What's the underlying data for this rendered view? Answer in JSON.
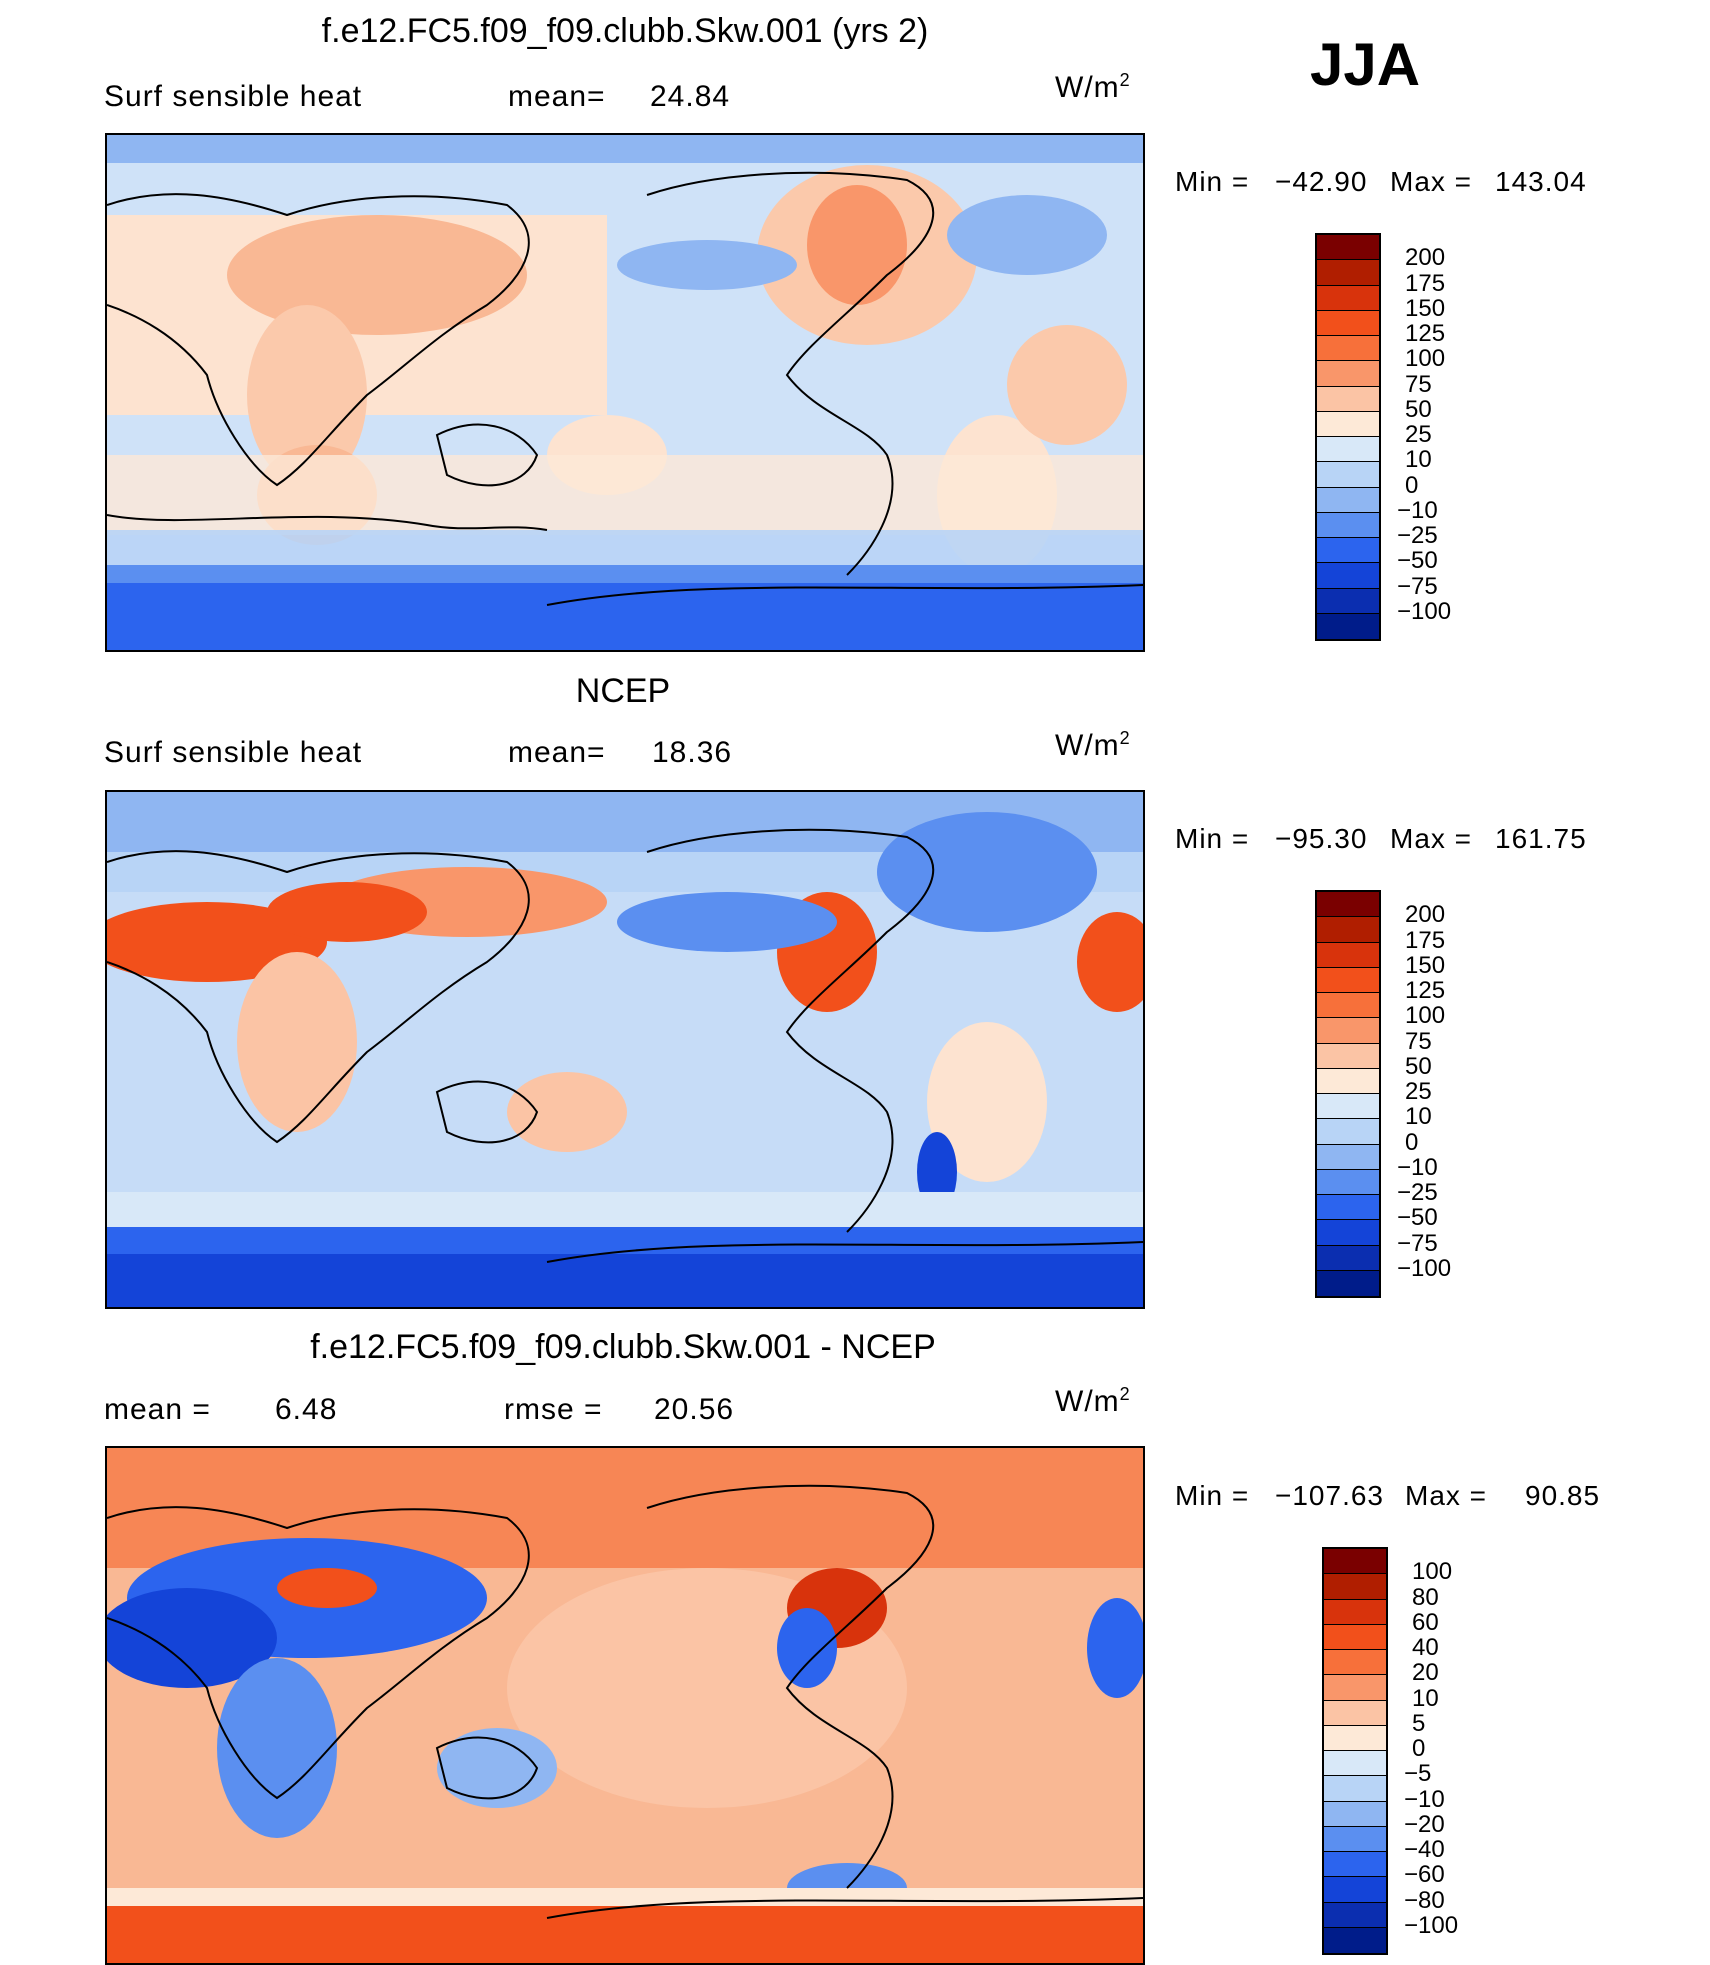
{
  "season": "JJA",
  "units_main": "W/m",
  "units_exp": "2",
  "panels": [
    {
      "title": "f.e12.FC5.f09_f09.clubb.Skw.001 (yrs 2)",
      "left_label": "Surf  sensible  heat",
      "stat_label": "mean=",
      "stat_value": "24.84",
      "min_label": "Min  =",
      "min_value": "−42.90",
      "max_label": "Max  =",
      "max_value": "143.04",
      "colorbar": {
        "levels": [
          "200",
          "175",
          "150",
          "125",
          "100",
          "75",
          "50",
          "25",
          "10",
          "0",
          "−10",
          "−25",
          "−50",
          "−75",
          "−100"
        ],
        "colors": [
          "#7a0000",
          "#b01e00",
          "#d8330c",
          "#f2501b",
          "#f7703a",
          "#f9966a",
          "#fbc4a5",
          "#fde9d7",
          "#d8e8f8",
          "#b8d4f6",
          "#8fb6f2",
          "#5b8ff0",
          "#2c64ee",
          "#1444d8",
          "#0b2eb0",
          "#001c8a"
        ]
      }
    },
    {
      "title": "NCEP",
      "left_label": "Surf  sensible  heat",
      "stat_label": "mean=",
      "stat_value": "18.36",
      "min_label": "Min  =",
      "min_value": "−95.30",
      "max_label": "Max  =",
      "max_value": "161.75",
      "colorbar": {
        "levels": [
          "200",
          "175",
          "150",
          "125",
          "100",
          "75",
          "50",
          "25",
          "10",
          "0",
          "−10",
          "−25",
          "−50",
          "−75",
          "−100"
        ],
        "colors": [
          "#7a0000",
          "#b01e00",
          "#d8330c",
          "#f2501b",
          "#f7703a",
          "#f9966a",
          "#fbc4a5",
          "#fde9d7",
          "#d8e8f8",
          "#b8d4f6",
          "#8fb6f2",
          "#5b8ff0",
          "#2c64ee",
          "#1444d8",
          "#0b2eb0",
          "#001c8a"
        ]
      }
    },
    {
      "title": "f.e12.FC5.f09_f09.clubb.Skw.001 - NCEP",
      "left_label": "mean  =",
      "left_value": "6.48",
      "stat_label": "rmse  =",
      "stat_value": "20.56",
      "min_label": "Min  =",
      "min_value": "−107.63",
      "max_label": "Max  =",
      "max_value": "90.85",
      "colorbar": {
        "levels": [
          "100",
          "80",
          "60",
          "40",
          "20",
          "10",
          "5",
          "0",
          "−5",
          "−10",
          "−20",
          "−40",
          "−60",
          "−80",
          "−100"
        ],
        "colors": [
          "#7a0000",
          "#b01e00",
          "#d8330c",
          "#f2501b",
          "#f7703a",
          "#f9966a",
          "#fbc4a5",
          "#fde9d7",
          "#d8e8f8",
          "#b8d4f6",
          "#8fb6f2",
          "#5b8ff0",
          "#2c64ee",
          "#1444d8",
          "#0b2eb0",
          "#001c8a"
        ]
      }
    }
  ]
}
